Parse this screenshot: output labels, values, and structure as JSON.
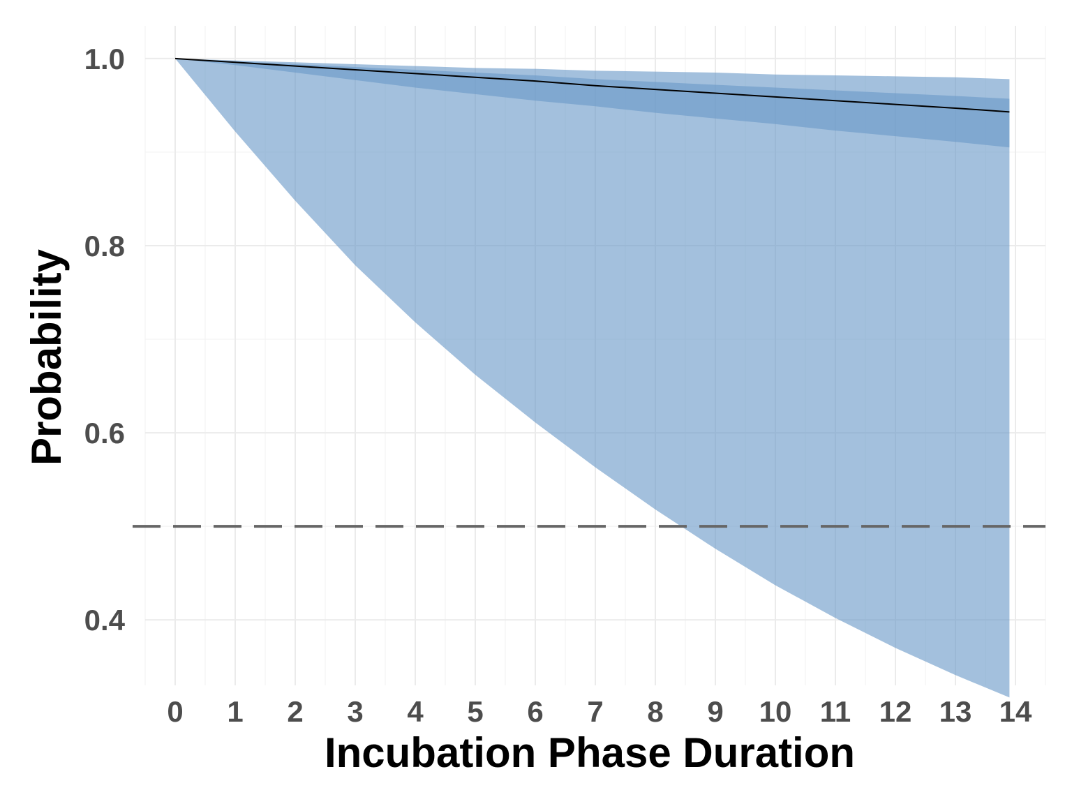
{
  "chart_data": {
    "type": "area",
    "title": "",
    "xlabel": "Incubation Phase Duration",
    "ylabel": "Probability",
    "xlim": [
      -0.5,
      14.5
    ],
    "ylim": [
      0.33,
      1.035
    ],
    "x_ticks": [
      0,
      1,
      2,
      3,
      4,
      5,
      6,
      7,
      8,
      9,
      10,
      11,
      12,
      13,
      14
    ],
    "y_ticks": [
      0.4,
      0.6,
      0.8,
      1.0
    ],
    "y_tick_labels": [
      "0.4",
      "0.6",
      "0.8",
      "1.0"
    ],
    "grid": true,
    "reference_line": {
      "y": 0.5,
      "style": "dashed",
      "color": "#666666"
    },
    "x": [
      0,
      1,
      2,
      3,
      4,
      5,
      6,
      7,
      8,
      9,
      10,
      11,
      12,
      13,
      13.9
    ],
    "series": [
      {
        "kind": "band",
        "color": "#6a9ac8",
        "lower": [
          1.0,
          0.922,
          0.848,
          0.779,
          0.718,
          0.662,
          0.611,
          0.563,
          0.518,
          0.476,
          0.437,
          0.402,
          0.37,
          0.341,
          0.317
        ],
        "upper": [
          1.0,
          0.998,
          0.996,
          0.994,
          0.992,
          0.99,
          0.989,
          0.987,
          0.986,
          0.985,
          0.983,
          0.982,
          0.981,
          0.98,
          0.978
        ]
      },
      {
        "kind": "band",
        "color": "#6a9ac8",
        "lower": [
          1.0,
          0.993,
          0.985,
          0.977,
          0.969,
          0.962,
          0.955,
          0.949,
          0.942,
          0.936,
          0.93,
          0.923,
          0.917,
          0.911,
          0.905
        ],
        "upper": [
          1.0,
          0.997,
          0.994,
          0.991,
          0.988,
          0.985,
          0.982,
          0.978,
          0.975,
          0.972,
          0.969,
          0.966,
          0.963,
          0.96,
          0.957
        ]
      },
      {
        "kind": "line",
        "color": "#000000",
        "values": [
          1.0,
          0.996,
          0.992,
          0.988,
          0.984,
          0.98,
          0.976,
          0.971,
          0.967,
          0.963,
          0.959,
          0.955,
          0.951,
          0.947,
          0.943
        ]
      }
    ]
  }
}
